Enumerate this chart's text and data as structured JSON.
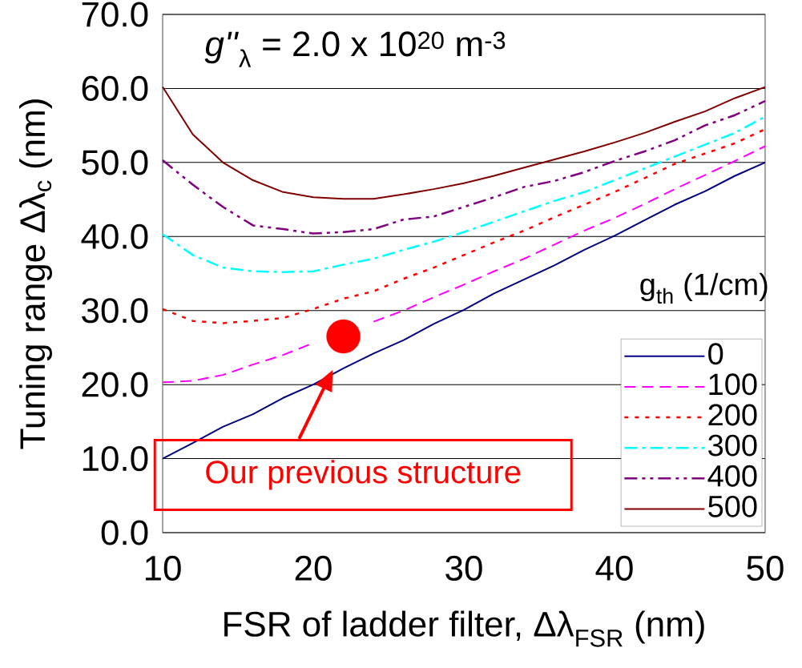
{
  "chart_data": {
    "type": "line",
    "xlabel": "FSR of ladder filter, Δλ$_{FSR}$ (nm)",
    "ylabel": "Tuning range Δλ$_{c}$ (nm)",
    "legend_title": "g$_{th}$ (1/cm)",
    "x": [
      10,
      12,
      14,
      16,
      18,
      20,
      22,
      24,
      26,
      28,
      30,
      32,
      34,
      36,
      38,
      40,
      42,
      44,
      46,
      48,
      50
    ],
    "series": [
      {
        "name": "0",
        "color": "#000080",
        "line_style": "solid",
        "values": [
          10,
          12.1,
          14.3,
          16,
          18.2,
          20,
          22.2,
          24.2,
          26,
          28.2,
          30.1,
          32.3,
          34.2,
          36.1,
          38.2,
          40.1,
          42.2,
          44.3,
          46.1,
          48.2,
          50
        ]
      },
      {
        "name": "100",
        "color": "#ff00ff",
        "line_style": "dashed",
        "values": [
          20.3,
          20.5,
          21.3,
          22.7,
          24,
          25.6,
          null,
          28.5,
          30,
          31.8,
          33.5,
          35.3,
          37,
          38.9,
          40.8,
          42.5,
          44.4,
          46.4,
          48.3,
          50.2,
          52.2
        ]
      },
      {
        "name": "200",
        "color": "#ff0000",
        "line_style": "dotted",
        "values": [
          30.2,
          28.6,
          28.3,
          28.6,
          29,
          30.2,
          31.6,
          32.6,
          34.3,
          35.8,
          37.5,
          39.2,
          40.8,
          42.6,
          44.3,
          46,
          47.9,
          49.8,
          51.2,
          52.6,
          54.5
        ]
      },
      {
        "name": "300",
        "color": "#00ffff",
        "line_style": "dashdot",
        "values": [
          40.3,
          37.5,
          35.8,
          35.3,
          35.2,
          35.3,
          36.2,
          37,
          38.2,
          39.3,
          40.6,
          42,
          43.4,
          44.8,
          46,
          47.6,
          49.2,
          50.8,
          52.4,
          54,
          56.2
        ]
      },
      {
        "name": "400",
        "color": "#800080",
        "line_style": "dashdotdot",
        "values": [
          50.3,
          47,
          44,
          41.5,
          41,
          40.4,
          40.6,
          41,
          42.3,
          42.7,
          44,
          45.3,
          46.7,
          47.5,
          48.7,
          50.2,
          51.5,
          53,
          55,
          56.4,
          58.3
        ]
      },
      {
        "name": "500",
        "color": "#800000",
        "line_style": "solid",
        "values": [
          60.2,
          53.8,
          50,
          47.6,
          46,
          45.3,
          45.1,
          45.1,
          45.7,
          46.4,
          47.2,
          48.2,
          49.3,
          50.4,
          51.5,
          52.7,
          54,
          55.5,
          56.9,
          58.7,
          60.2
        ]
      },
      {
        "type": "scatter",
        "color": "#ff0000",
        "marker": "circle",
        "x": [
          22
        ],
        "values": [
          26.5
        ]
      }
    ],
    "xlim": [
      10,
      50
    ],
    "xticks": [
      10,
      20,
      30,
      40,
      50
    ],
    "ylim": [
      0,
      70
    ],
    "yticks": [
      {
        "value": 0,
        "label": "0.0"
      },
      {
        "value": 10,
        "label": "10.0"
      },
      {
        "value": 20,
        "label": "20.0"
      },
      {
        "value": 30,
        "label": "30.0"
      },
      {
        "value": 40,
        "label": "40.0"
      },
      {
        "value": 50,
        "label": "50.0"
      },
      {
        "value": 60,
        "label": "60.0"
      },
      {
        "value": 70,
        "label": "70.0"
      }
    ],
    "grid": "y",
    "legend": "bottom right",
    "annotations": [
      "*g''*$_{λ}$ = 2.0 x 10$^{20}$ m$^{-3}$",
      {
        "text": "Our previous structure",
        "x": 21.3,
        "y": 22
      }
    ]
  }
}
